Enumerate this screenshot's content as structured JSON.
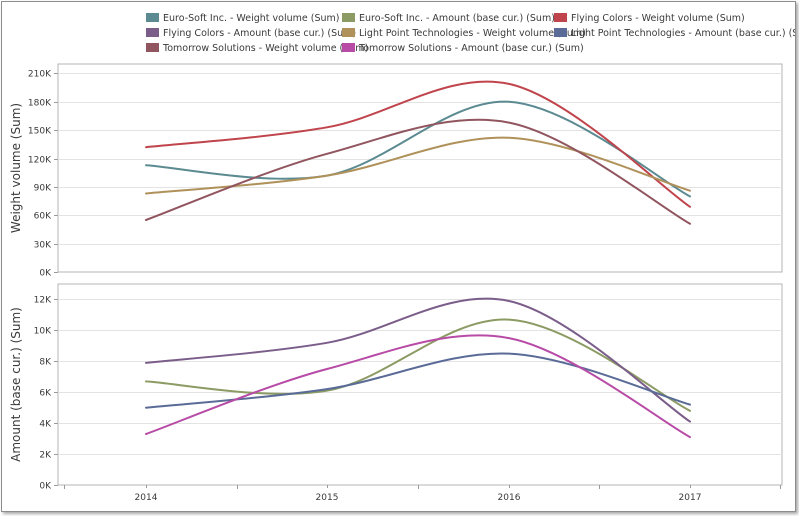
{
  "chart_data": {
    "type": "line",
    "x": [
      "2014",
      "2015",
      "2016",
      "2017"
    ],
    "legend": [
      {
        "name": "Euro-Soft Inc. - Weight volume (Sum)",
        "color": "#5b8a91"
      },
      {
        "name": "Euro-Soft Inc. - Amount (base cur.) (Sum)",
        "color": "#8b9b63"
      },
      {
        "name": "Flying Colors - Weight volume (Sum)",
        "color": "#c0444c"
      },
      {
        "name": "Flying Colors - Amount (base cur.) (Sum)",
        "color": "#7b5d8a"
      },
      {
        "name": "Light Point Technologies - Weight volume (Sum)",
        "color": "#b0915a"
      },
      {
        "name": "Light Point Technologies - Amount (base cur.) (Sum)",
        "color": "#5a6b97"
      },
      {
        "name": "Tomorrow Solutions - Weight volume (Sum)",
        "color": "#91555f"
      },
      {
        "name": "Tomorrow Solutions - Amount (base cur.) (Sum)",
        "color": "#b74ba6"
      }
    ],
    "panes": [
      {
        "ylabel": "Weight volume (Sum)",
        "ylim": [
          0,
          220000
        ],
        "yticks": [
          0,
          30000,
          60000,
          90000,
          120000,
          150000,
          180000,
          210000
        ],
        "ytick_labels": [
          "0K",
          "30K",
          "60K",
          "90K",
          "120K",
          "150K",
          "180K",
          "210K"
        ],
        "series": [
          {
            "name": "Euro-Soft Inc. - Weight volume (Sum)",
            "color": "#5b8a91",
            "values": [
              113000,
              102000,
              180000,
              80000
            ]
          },
          {
            "name": "Flying Colors - Weight volume (Sum)",
            "color": "#c0444c",
            "values": [
              132000,
              153000,
              199000,
              69000
            ]
          },
          {
            "name": "Light Point Technologies - Weight volume (Sum)",
            "color": "#b0915a",
            "values": [
              83000,
              102000,
              142000,
              86000
            ]
          },
          {
            "name": "Tomorrow Solutions - Weight volume (Sum)",
            "color": "#91555f",
            "values": [
              55000,
              125000,
              158000,
              51000
            ]
          }
        ]
      },
      {
        "ylabel": "Amount (base cur.) (Sum)",
        "ylim": [
          0,
          13000
        ],
        "yticks": [
          0,
          2000,
          4000,
          6000,
          8000,
          10000,
          12000
        ],
        "ytick_labels": [
          "0K",
          "2K",
          "4K",
          "6K",
          "8K",
          "10K",
          "12K"
        ],
        "series": [
          {
            "name": "Euro-Soft Inc. - Amount (base cur.) (Sum)",
            "color": "#8b9b63",
            "values": [
              6700,
              6100,
              10700,
              4800
            ]
          },
          {
            "name": "Flying Colors - Amount (base cur.) (Sum)",
            "color": "#7b5d8a",
            "values": [
              7900,
              9200,
              11900,
              4100
            ]
          },
          {
            "name": "Light Point Technologies - Amount (base cur.) (Sum)",
            "color": "#5a6b97",
            "values": [
              5000,
              6200,
              8500,
              5200
            ]
          },
          {
            "name": "Tomorrow Solutions - Amount (base cur.) (Sum)",
            "color": "#b74ba6",
            "values": [
              3300,
              7500,
              9500,
              3100
            ]
          }
        ]
      }
    ],
    "grid": true,
    "legend_position": "top-center"
  }
}
